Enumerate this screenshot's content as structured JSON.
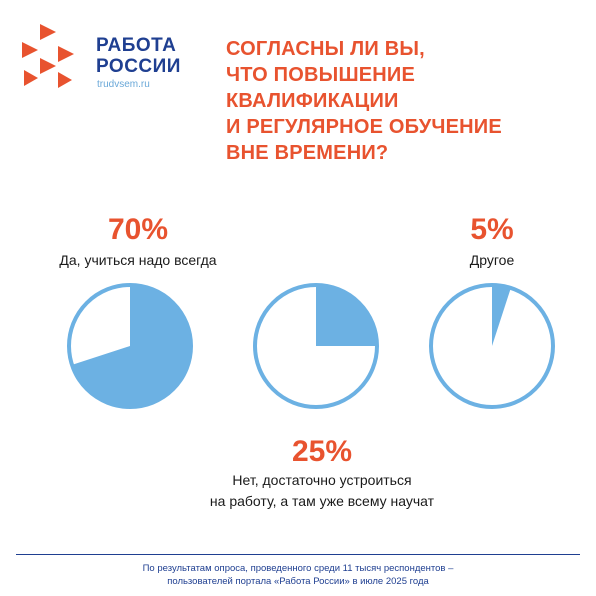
{
  "brand": {
    "line1": "РАБОТА",
    "line2": "РОССИИ",
    "url": "trudvsem.ru"
  },
  "question": {
    "lines": [
      "СОГЛАСНЫ ЛИ ВЫ,",
      "ЧТО ПОВЫШЕНИЕ",
      "КВАЛИФИКАЦИИ",
      "И РЕГУЛЯРНОЕ ОБУЧЕНИЕ",
      "ВНЕ ВРЕМЕНИ?"
    ]
  },
  "colors": {
    "accent": "#e8532f",
    "pie": "#6cb1e3",
    "brand": "#1f3f91"
  },
  "chart_data": {
    "type": "pie",
    "slices": [
      {
        "percent_label": "70%",
        "value": 70,
        "label_lines": [
          "Да, учиться надо всегда"
        ]
      },
      {
        "percent_label": "25%",
        "value": 25,
        "label_lines": [
          "Нет, достаточно устроиться",
          "на работу, а там уже всему научат"
        ]
      },
      {
        "percent_label": "5%",
        "value": 5,
        "label_lines": [
          "Другое"
        ]
      }
    ]
  },
  "footnote": {
    "line1": "По результатам опроса, проведенного среди 11 тысяч респондентов –",
    "line2": "пользователей портала «Работа России» в июле 2025 года"
  }
}
